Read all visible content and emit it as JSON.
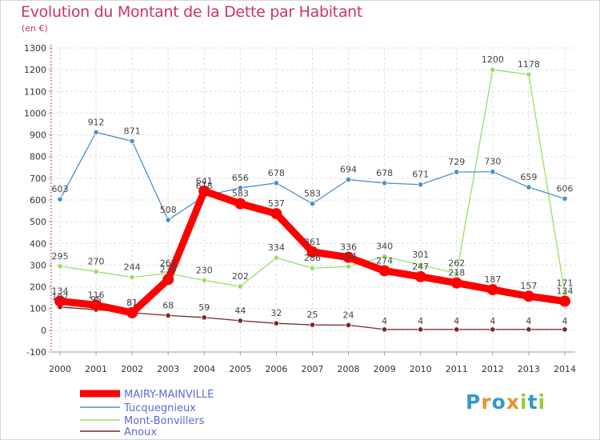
{
  "chart_data": {
    "type": "line",
    "title": "Evolution du Montant de la Dette par Habitant",
    "subtitle": "(en €)",
    "x": [
      "2000",
      "2001",
      "2002",
      "2003",
      "2004",
      "2005",
      "2006",
      "2007",
      "2008",
      "2009",
      "2010",
      "2011",
      "2012",
      "2013",
      "2014"
    ],
    "ylim": [
      -100,
      1300
    ],
    "yticks": [
      -100,
      0,
      100,
      200,
      300,
      400,
      500,
      600,
      700,
      800,
      900,
      1000,
      1100,
      1200,
      1300
    ],
    "grid": true,
    "legend_position": "bottom-left",
    "series": [
      {
        "name": "MAIRY-MAINVILLE",
        "color": "#ff0000",
        "style": "thick",
        "values": [
          134,
          116,
          81,
          234,
          641,
          583,
          537,
          361,
          336,
          274,
          247,
          218,
          187,
          157,
          134
        ],
        "labels": [
          "134",
          "116",
          "81",
          "234",
          "641",
          "583",
          "537",
          "361",
          "336",
          "274",
          "247",
          "218",
          "187",
          "157",
          "134"
        ]
      },
      {
        "name": "Tucquegnieux",
        "color": "#4d90cc",
        "style": "thin",
        "values": [
          603,
          912,
          871,
          508,
          618,
          656,
          678,
          583,
          694,
          678,
          671,
          729,
          730,
          659,
          606
        ],
        "labels": [
          "603",
          "912",
          "871",
          "508",
          "618",
          "656",
          "678",
          "583",
          "694",
          "678",
          "671",
          "729",
          "730",
          "659",
          "606"
        ]
      },
      {
        "name": "Mont-Bonvillers",
        "color": "#99dd66",
        "style": "thin",
        "values": [
          295,
          270,
          244,
          262,
          230,
          202,
          334,
          286,
          294,
          340,
          301,
          262,
          1200,
          1178,
          171
        ],
        "labels": [
          "295",
          "270",
          "244",
          "262",
          "230",
          "202",
          "334",
          "286",
          "294",
          "340",
          "301",
          "262",
          "1200",
          "1178",
          "171"
        ]
      },
      {
        "name": "Anoux",
        "color": "#7a2626",
        "style": "thin",
        "values": [
          107,
          95,
          81,
          68,
          59,
          44,
          32,
          25,
          24,
          4,
          4,
          4,
          4,
          4,
          4
        ],
        "labels": [
          "107",
          "95",
          "81",
          "68",
          "59",
          "44",
          "32",
          "25",
          "24",
          "4",
          "4",
          "4",
          "4",
          "4",
          "4"
        ]
      }
    ]
  },
  "logo": {
    "letters": [
      "P",
      "r",
      "o",
      "x",
      "i",
      "t",
      "i"
    ],
    "colors": [
      "#3399cc",
      "#e8912c",
      "#3399cc",
      "#e8912c",
      "#99cc33",
      "#3399cc",
      "#99cc33"
    ]
  }
}
